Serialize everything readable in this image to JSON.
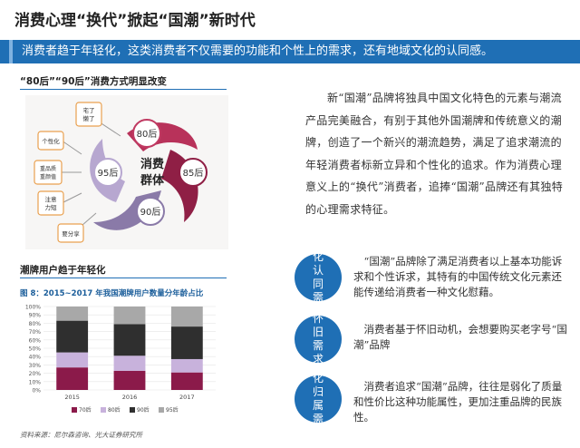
{
  "title": "消费心理“换代”掀起“国潮”新时代",
  "banner": "消费者趋于年轻化，这类消费者不仅需要的功能和个性上的需求，还有地域文化的认同感。",
  "section1": {
    "heading": "“80后”“90后”消费方式明显改变",
    "center_label_1": "消费",
    "center_label_2": "群体",
    "generations": [
      "80后",
      "85后",
      "90后",
      "95后"
    ],
    "traits": [
      "宅了懒了",
      "个性化",
      "重品质重颜值",
      "注意力短",
      "要分享"
    ]
  },
  "description": "新“国潮”品牌将独具中国文化特色的元素与潮流产品完美融合，有别于其他外国潮牌和传统意义的潮牌，创造了一个新兴的潮流趋势，满足了追求潮流的年轻消费者标新立异和个性化的追求。作为消费心理意义上的“换代”消费者，追捧“国潮”品牌还有其独特的心理需求特征。",
  "section2": {
    "heading": "潮牌用户趋于年轻化",
    "chart_caption": "图 8：2015~2017 年我国潮牌用户数量分年龄占比",
    "source": "资料来源：尼尔森咨询、光大证券研究所"
  },
  "chart_data": {
    "type": "bar",
    "stacked": true,
    "categories": [
      "2015",
      "2016",
      "2017"
    ],
    "series": [
      {
        "name": "70后",
        "color": "#8b1a4a",
        "values": [
          27,
          23,
          21
        ]
      },
      {
        "name": "80后",
        "color": "#c8b2dc",
        "values": [
          18,
          18,
          16
        ]
      },
      {
        "name": "90后",
        "color": "#2f2f2f",
        "values": [
          38,
          38,
          39
        ]
      },
      {
        "name": "95后",
        "color": "#a8a8a8",
        "values": [
          17,
          21,
          24
        ]
      }
    ],
    "yticks": [
      "0%",
      "10%",
      "20%",
      "30%",
      "40%",
      "50%",
      "60%",
      "70%",
      "80%",
      "90%",
      "100%"
    ],
    "ylim": [
      0,
      100
    ],
    "legend_position": "bottom"
  },
  "factors": [
    {
      "circle": [
        "化",
        "认",
        "同",
        "需"
      ],
      "text": "“国潮”品牌除了满足消费者以上基本功能诉求和个性诉求，其特有的中国传统文化元素还能传递给消费者一种文化慰藉。"
    },
    {
      "circle": [
        "怀",
        "旧",
        "需",
        "求"
      ],
      "text": "消费者基于怀旧动机，会想要购买老字号“国潮”品牌"
    },
    {
      "circle": [
        "化",
        "归",
        "属",
        "需"
      ],
      "text": "消费者追求“国潮”品牌，往往是弱化了质量和性价比这种功能属性，更加注重品牌的民族性。"
    }
  ]
}
